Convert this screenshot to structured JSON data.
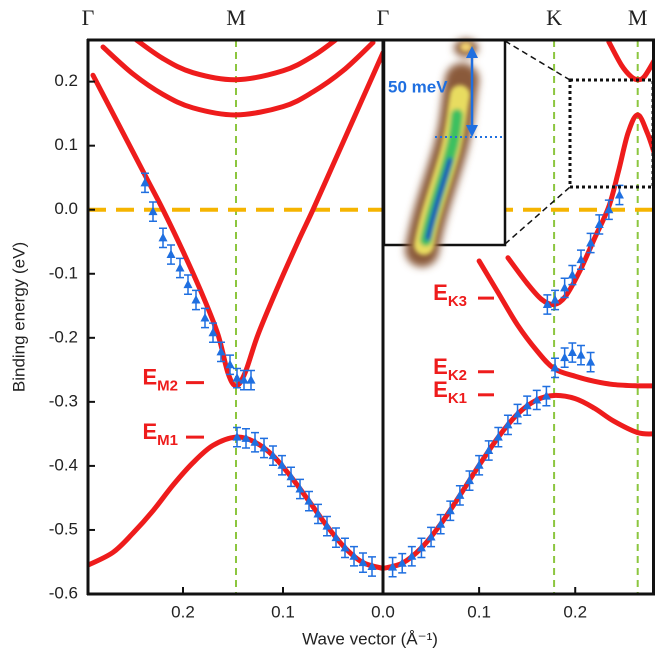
{
  "chart_data": [
    {
      "type": "line",
      "xlim": [
        0.295,
        0
      ],
      "ylim": [
        -0.6,
        0.265
      ],
      "xticks": [
        0.2,
        0.1,
        {
          "value": 0,
          "label": "0.0"
        }
      ],
      "yticks": [
        0.2,
        0.1,
        {
          "value": 0,
          "label": "0.0"
        },
        -0.1,
        -0.2,
        -0.3,
        -0.4,
        -0.5,
        -0.6
      ],
      "ylabel": "Binding energy (eV)",
      "xlabel": "Wave vector (Å⁻¹)",
      "guide_color": "#8cc63f",
      "symmetry_points": [
        {
          "label": "Γ",
          "x": 0.295,
          "guide": false
        },
        {
          "label": "M",
          "x": 0.147,
          "guide": true
        }
      ],
      "reference_line": {
        "y": 0,
        "color": "#f5b400"
      },
      "annotations": [
        {
          "main": "E",
          "sub": "M2",
          "y": -0.27
        },
        {
          "main": "E",
          "sub": "M1",
          "y": -0.355
        }
      ],
      "series": [
        {
          "kind": "line",
          "color": "#ee1c1c",
          "x": [
            0.29,
            0.27,
            0.25,
            0.235,
            0.22,
            0.2,
            0.18,
            0.165,
            0.155,
            0.147,
            0.138,
            0.125,
            0.105,
            0.085,
            0.07,
            0.05,
            0.03,
            0.01,
            0.0
          ],
          "values": [
            0.21,
            0.15,
            0.09,
            0.045,
            0.0,
            -0.065,
            -0.135,
            -0.195,
            -0.255,
            -0.275,
            -0.255,
            -0.195,
            -0.12,
            -0.05,
            0.0,
            0.07,
            0.14,
            0.21,
            0.245
          ]
        },
        {
          "kind": "line",
          "color": "#ee1c1c",
          "x": [
            0.28,
            0.25,
            0.22,
            0.19,
            0.147,
            0.1,
            0.07,
            0.04,
            0.01
          ],
          "values": [
            0.254,
            0.212,
            0.18,
            0.159,
            0.148,
            0.161,
            0.184,
            0.217,
            0.261
          ]
        },
        {
          "kind": "line",
          "color": "#ee1c1c",
          "x": [
            0.25,
            0.22,
            0.19,
            0.147,
            0.1,
            0.07,
            0.045
          ],
          "values": [
            0.269,
            0.236,
            0.214,
            0.203,
            0.217,
            0.24,
            0.268
          ]
        },
        {
          "kind": "line",
          "color": "#ee1c1c",
          "x": [
            0.295,
            0.27,
            0.25,
            0.23,
            0.21,
            0.19,
            0.17,
            0.147,
            0.128,
            0.11,
            0.092,
            0.074,
            0.056,
            0.038,
            0.02,
            0
          ],
          "values": [
            -0.555,
            -0.535,
            -0.505,
            -0.47,
            -0.43,
            -0.395,
            -0.368,
            -0.355,
            -0.363,
            -0.384,
            -0.417,
            -0.455,
            -0.494,
            -0.528,
            -0.551,
            -0.56
          ]
        },
        {
          "kind": "errorbar",
          "color": "#1f6fe0",
          "error": 0.015,
          "x": [
            0.238,
            0.23,
            0.22,
            0.212,
            0.203,
            0.195,
            0.187,
            0.178,
            0.17,
            0.162,
            0.153,
            0.146,
            0.139,
            0.132
          ],
          "values": [
            0.042,
            -0.003,
            -0.044,
            -0.07,
            -0.091,
            -0.117,
            -0.141,
            -0.169,
            -0.192,
            -0.222,
            -0.242,
            -0.263,
            -0.266,
            -0.266
          ]
        },
        {
          "kind": "errorbar",
          "color": "#1f6fe0",
          "error": 0.015,
          "x": [
            0.146,
            0.137,
            0.128,
            0.119,
            0.11,
            0.101,
            0.092,
            0.083,
            0.074,
            0.065,
            0.056,
            0.047,
            0.038,
            0.029,
            0.02,
            0.011
          ],
          "values": [
            -0.355,
            -0.357,
            -0.363,
            -0.372,
            -0.384,
            -0.399,
            -0.417,
            -0.436,
            -0.455,
            -0.475,
            -0.494,
            -0.512,
            -0.528,
            -0.541,
            -0.551,
            -0.557
          ]
        }
      ]
    },
    {
      "type": "line",
      "xlim": [
        0,
        0.283
      ],
      "ylim": [
        -0.6,
        0.265
      ],
      "xticks": [
        0.1,
        0.2
      ],
      "guide_color": "#8cc63f",
      "symmetry_points": [
        {
          "label": "Γ",
          "x": 0,
          "guide": false
        },
        {
          "label": "K",
          "x": 0.178,
          "guide": true
        },
        {
          "label": "M",
          "x": 0.265,
          "guide": true
        }
      ],
      "reference_line": {
        "y": 0,
        "color": "#f5b400"
      },
      "inset_label": "50 meV",
      "annotations": [
        {
          "main": "E",
          "sub": "K3",
          "y": -0.138
        },
        {
          "main": "E",
          "sub": "K2",
          "y": -0.253
        },
        {
          "main": "E",
          "sub": "K1",
          "y": -0.289
        }
      ],
      "series": [
        {
          "kind": "line",
          "color": "#ee1c1c",
          "x": [
            0,
            0.02,
            0.04,
            0.06,
            0.08,
            0.1,
            0.12,
            0.14,
            0.16,
            0.178,
            0.2,
            0.22,
            0.24,
            0.265,
            0.283
          ],
          "values": [
            -0.56,
            -0.552,
            -0.528,
            -0.491,
            -0.446,
            -0.399,
            -0.355,
            -0.319,
            -0.297,
            -0.29,
            -0.295,
            -0.31,
            -0.33,
            -0.348,
            -0.35
          ]
        },
        {
          "kind": "line",
          "color": "#ee1c1c",
          "x": [
            0.1,
            0.12,
            0.14,
            0.16,
            0.178,
            0.2,
            0.22,
            0.24,
            0.265,
            0.283
          ],
          "values": [
            -0.08,
            -0.13,
            -0.18,
            -0.22,
            -0.248,
            -0.26,
            -0.268,
            -0.273,
            -0.275,
            -0.275
          ]
        },
        {
          "kind": "line",
          "color": "#ee1c1c",
          "x": [
            0.13,
            0.15,
            0.165,
            0.178,
            0.19,
            0.205,
            0.22,
            0.235,
            0.245,
            0.255,
            0.265,
            0.275,
            0.283
          ],
          "values": [
            -0.075,
            -0.115,
            -0.14,
            -0.148,
            -0.135,
            -0.095,
            -0.045,
            0.005,
            0.06,
            0.12,
            0.148,
            0.12,
            0.085
          ]
        },
        {
          "kind": "line",
          "color": "#ee1c1c",
          "x": [
            0.235,
            0.248,
            0.258,
            0.265,
            0.272,
            0.283
          ],
          "values": [
            0.262,
            0.226,
            0.208,
            0.203,
            0.208,
            0.235
          ]
        },
        {
          "kind": "errorbar",
          "color": "#1f6fe0",
          "error": 0.015,
          "x": [
            0.01,
            0.02,
            0.03,
            0.04,
            0.05,
            0.06,
            0.07,
            0.08,
            0.09,
            0.1,
            0.11,
            0.12,
            0.13,
            0.14,
            0.15,
            0.16,
            0.17
          ],
          "values": [
            -0.558,
            -0.552,
            -0.541,
            -0.528,
            -0.511,
            -0.491,
            -0.47,
            -0.446,
            -0.423,
            -0.399,
            -0.376,
            -0.355,
            -0.336,
            -0.319,
            -0.306,
            -0.297,
            -0.291
          ]
        },
        {
          "kind": "errorbar",
          "color": "#1f6fe0",
          "error": 0.015,
          "x": [
            0.171,
            0.179,
            0.189,
            0.197,
            0.206,
            0.216,
            0.225,
            0.235,
            0.246
          ],
          "values": [
            -0.148,
            -0.141,
            -0.122,
            -0.102,
            -0.078,
            -0.052,
            -0.023,
            0.0,
            0.023
          ]
        },
        {
          "kind": "errorbar",
          "color": "#1f6fe0",
          "error": 0.015,
          "x": [
            0.179,
            0.189,
            0.197,
            0.206,
            0.216
          ],
          "values": [
            -0.247,
            -0.231,
            -0.223,
            -0.227,
            -0.238
          ]
        }
      ]
    }
  ]
}
